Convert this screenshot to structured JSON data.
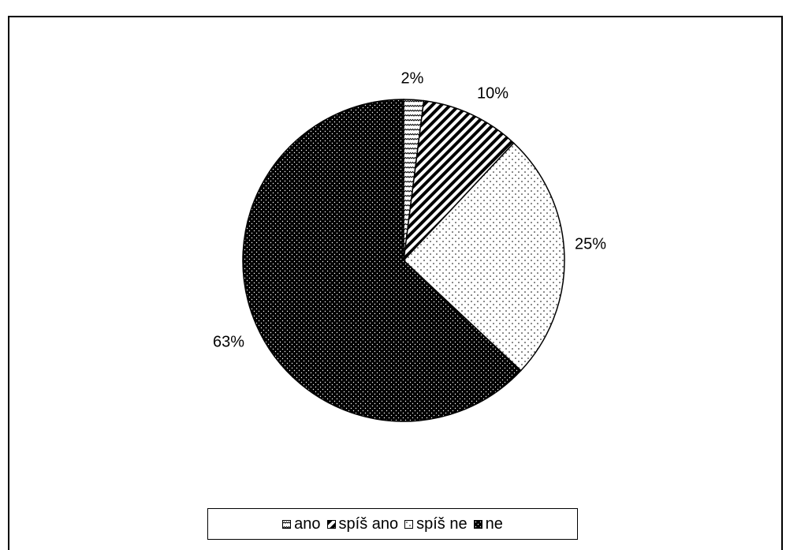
{
  "chart_data": {
    "type": "pie",
    "title": "",
    "categories": [
      "ano",
      "spíš ano",
      "spíš ne",
      "ne"
    ],
    "values": [
      2,
      10,
      25,
      63
    ],
    "value_labels": [
      "2%",
      "10%",
      "25%",
      "63%"
    ],
    "legend_position": "bottom",
    "start_angle": "12 o'clock",
    "direction": "clockwise",
    "patterns": [
      "zigzag",
      "diagonal-stripes",
      "sparse-dots",
      "dense-dots-on-black"
    ]
  }
}
